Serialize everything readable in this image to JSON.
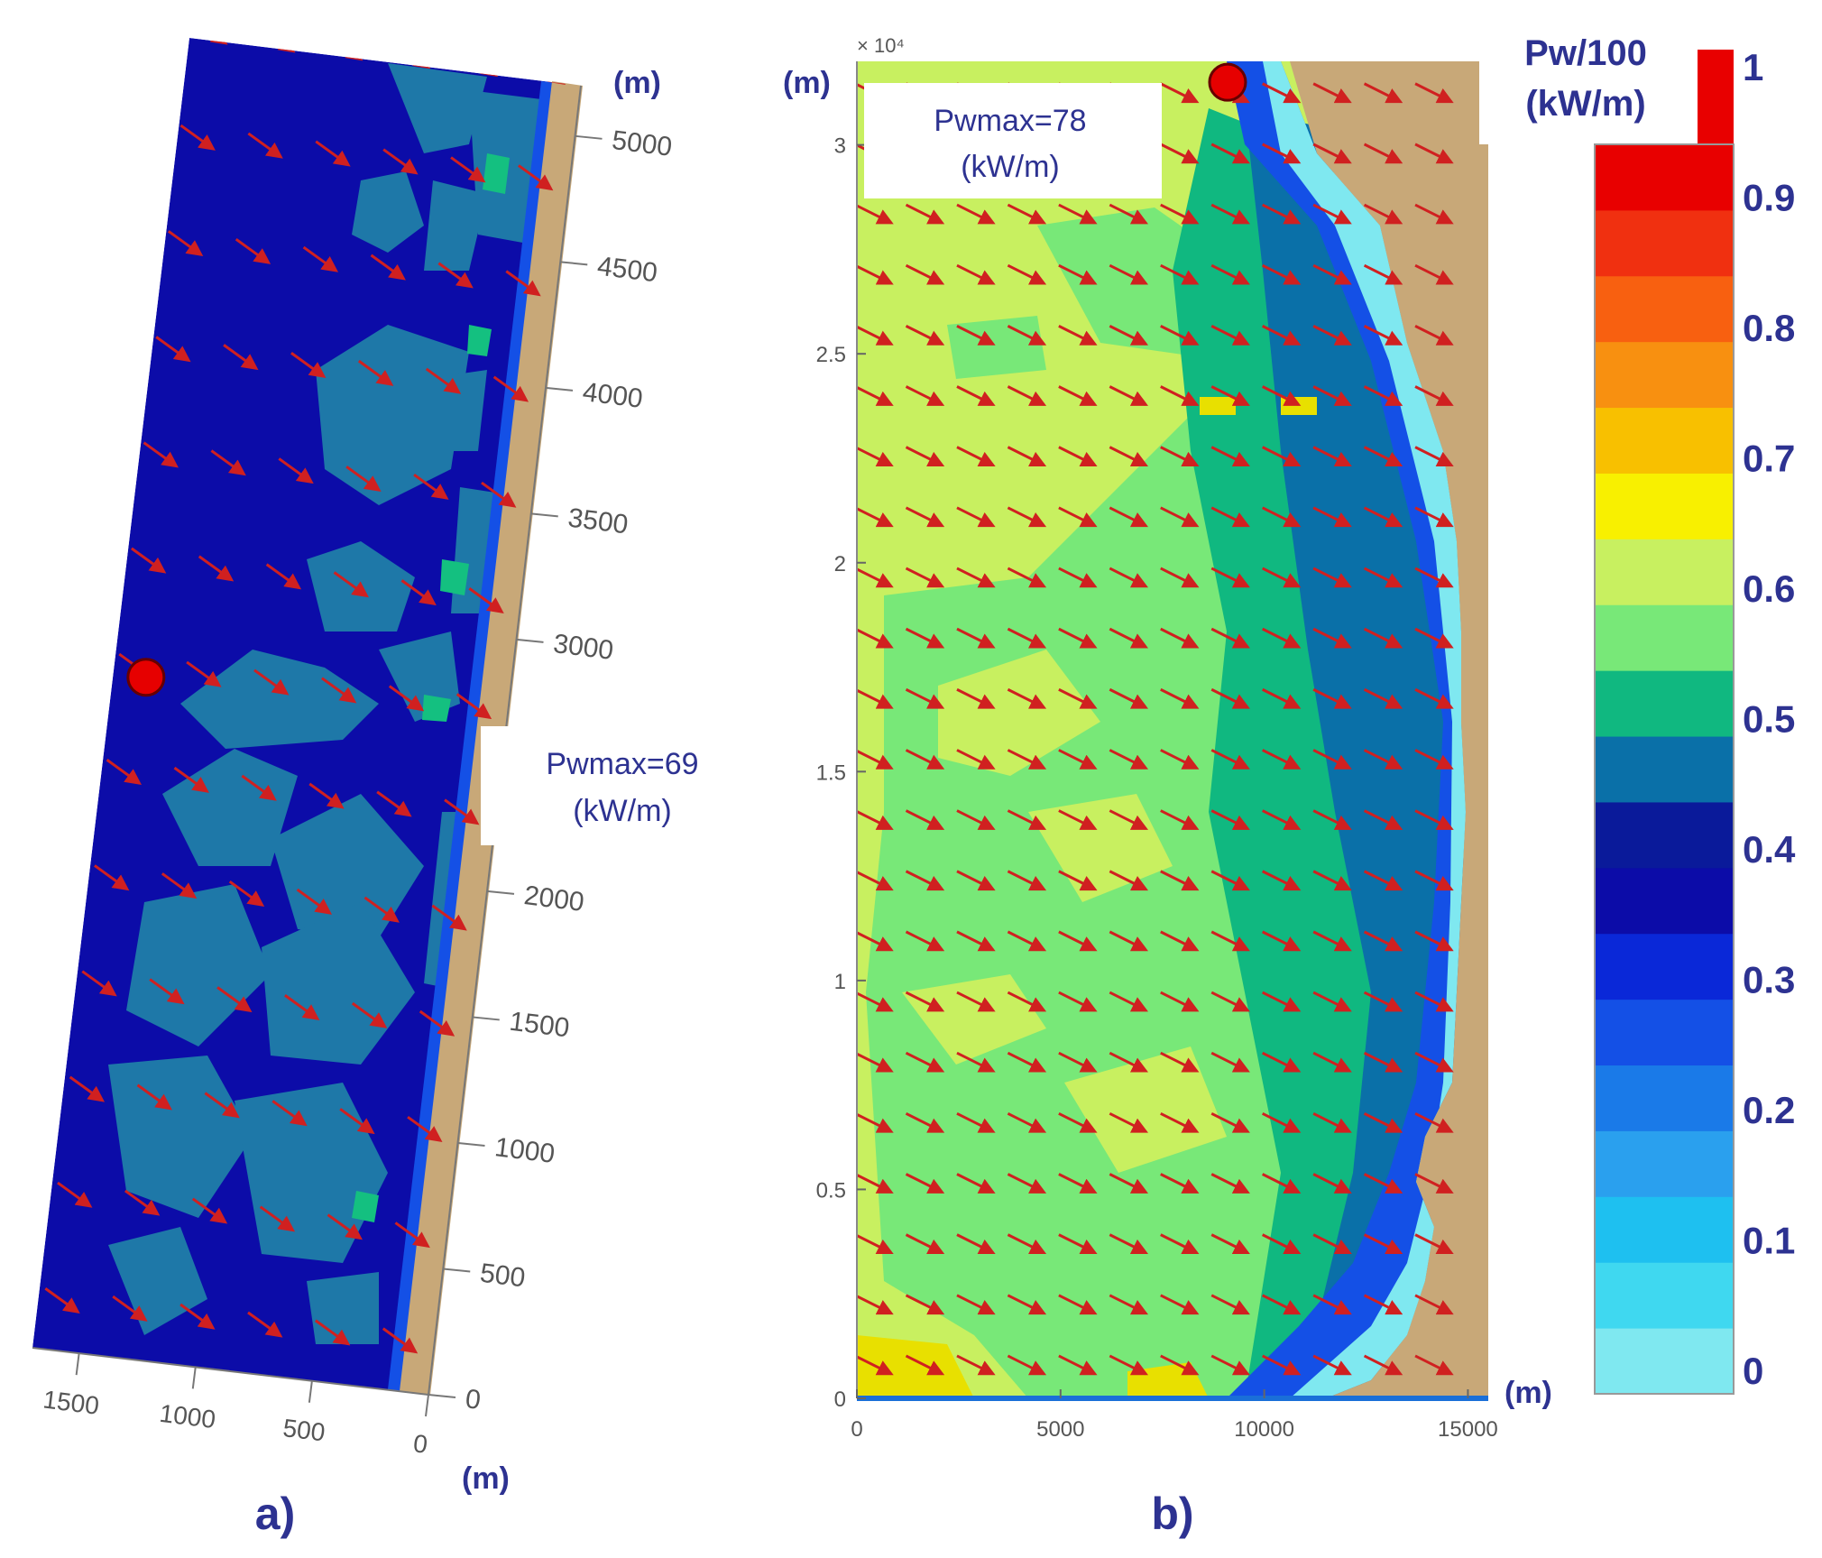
{
  "chart_data": [
    {
      "type": "heatmap",
      "panel_label": "a)",
      "annotation": [
        "Pwmax=69",
        "(kW/m)"
      ],
      "x_unit": "(m)",
      "y_unit": "(m)",
      "x_ticks": [
        "0",
        "500",
        "1000",
        "1500"
      ],
      "y_ticks": [
        "0",
        "500",
        "1000",
        "1500",
        "2000",
        "2500",
        "3000",
        "3500",
        "4000",
        "4500",
        "5000"
      ],
      "xlim": [
        0,
        1700
      ],
      "ylim": [
        0,
        5200
      ],
      "max_point": {
        "x": 1550,
        "y": 2680,
        "color": "#e60000"
      },
      "arrow_color": "#d02020",
      "land_color": "#c8a878"
    },
    {
      "type": "heatmap",
      "panel_label": "b)",
      "annotation": [
        "Pwmax=78",
        "(kW/m)"
      ],
      "x_unit": "(m)",
      "y_unit": "(m)",
      "y_exponent": "× 10⁴",
      "x_ticks": [
        "0",
        "5000",
        "10000",
        "15000"
      ],
      "y_ticks": [
        "0",
        "0.5",
        "1",
        "1.5",
        "2",
        "2.5",
        "3"
      ],
      "xlim": [
        0,
        15500
      ],
      "ylim": [
        0,
        32000
      ],
      "max_point": {
        "x": 9100,
        "y": 31500,
        "color": "#e60000"
      },
      "arrow_color": "#d02020",
      "land_color": "#c8a878"
    }
  ],
  "colorbar": {
    "title": [
      "Pw/100",
      "(kW/m)"
    ],
    "ticks": [
      "0",
      "0.1",
      "0.2",
      "0.3",
      "0.4",
      "0.5",
      "0.6",
      "0.7",
      "0.8",
      "0.9",
      "1"
    ],
    "range": [
      0,
      1
    ],
    "colors": [
      "#7fe8f0",
      "#3fd8f0",
      "#1ec0f0",
      "#2aa0ee",
      "#1a7ae8",
      "#1450e6",
      "#0a28d8",
      "#0c0ca8",
      "#0a1a9a",
      "#0a70a8",
      "#10b880",
      "#78e878",
      "#c8f060",
      "#f8f000",
      "#f8c000",
      "#f89010",
      "#f86010",
      "#f03010",
      "#e80000"
    ]
  }
}
